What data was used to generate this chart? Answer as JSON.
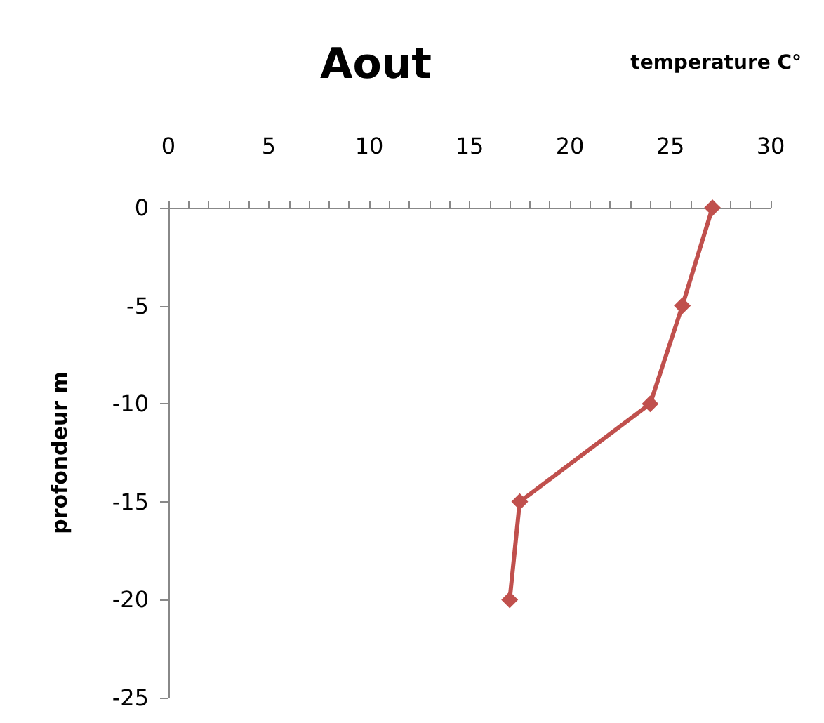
{
  "chart_data": {
    "type": "line",
    "title": "Aout",
    "xlabel": "temperature C°",
    "ylabel": "profondeur m",
    "x": [
      27.1,
      25.6,
      24.0,
      17.5,
      17.0
    ],
    "series": [
      {
        "color": "#c0504d",
        "values": [
          0,
          -5,
          -10,
          -15,
          -20
        ]
      }
    ],
    "xlim": [
      0,
      30
    ],
    "xticks": [
      0,
      {
        "value": 1,
        "label": null
      },
      {
        "value": 2,
        "label": null
      },
      {
        "value": 3,
        "label": null
      },
      {
        "value": 4,
        "label": null
      },
      5,
      {
        "value": 6,
        "label": null
      },
      {
        "value": 7,
        "label": null
      },
      {
        "value": 8,
        "label": null
      },
      {
        "value": 9,
        "label": null
      },
      10,
      {
        "value": 11,
        "label": null
      },
      {
        "value": 12,
        "label": null
      },
      {
        "value": 13,
        "label": null
      },
      {
        "value": 14,
        "label": null
      },
      15,
      {
        "value": 16,
        "label": null
      },
      {
        "value": 17,
        "label": null
      },
      {
        "value": 18,
        "label": null
      },
      {
        "value": 19,
        "label": null
      },
      20,
      {
        "value": 21,
        "label": null
      },
      {
        "value": 22,
        "label": null
      },
      {
        "value": 23,
        "label": null
      },
      {
        "value": 24,
        "label": null
      },
      25,
      {
        "value": 26,
        "label": null
      },
      {
        "value": 27,
        "label": null
      },
      {
        "value": 28,
        "label": null
      },
      {
        "value": 29,
        "label": null
      },
      30
    ],
    "ylim": [
      -25,
      0
    ],
    "yticks": [
      0,
      -5,
      -10,
      -15,
      -20,
      -25
    ],
    "grid": false,
    "marker": "diamond",
    "line_style": "solid"
  }
}
